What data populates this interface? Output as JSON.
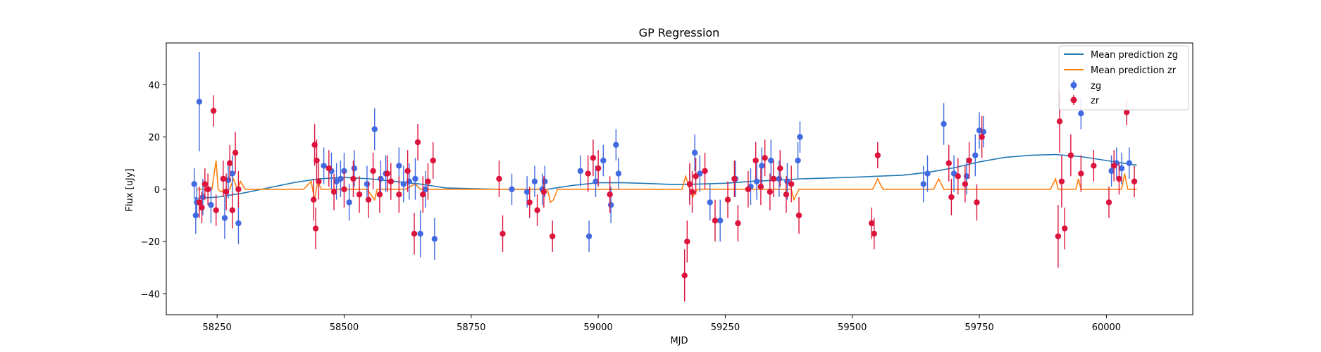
{
  "chart_data": {
    "type": "scatter",
    "title": "GP Regression",
    "xlabel": "MJD",
    "ylabel": "Flux [uJy]",
    "xlim": [
      58150,
      60170
    ],
    "ylim": [
      -48,
      56
    ],
    "xticks": [
      58250,
      58500,
      58750,
      59000,
      59250,
      59500,
      59750,
      60000
    ],
    "yticks": [
      -40,
      -20,
      0,
      20,
      40
    ],
    "grid": false,
    "legend_position": "top-right",
    "colors": {
      "zg_line": "#1f77b4",
      "zr_line": "#ff7f0e",
      "zg_points": "#4169e1",
      "zr_points": "#dc143c"
    },
    "legend": [
      "Mean prediction zg",
      "Mean prediction zr",
      "zg",
      "zr"
    ],
    "series": [
      {
        "name": "Mean prediction zg",
        "kind": "line",
        "x": [
          58210,
          58250,
          58300,
          58350,
          58400,
          58450,
          58500,
          58550,
          58600,
          58650,
          58700,
          58800,
          58900,
          58950,
          59000,
          59050,
          59100,
          59150,
          59200,
          59250,
          59300,
          59350,
          59400,
          59450,
          59500,
          59550,
          59600,
          59650,
          59700,
          59750,
          59800,
          59850,
          59900,
          59950,
          60000,
          60060
        ],
        "y": [
          -3.5,
          -3,
          -1.5,
          0.5,
          2.5,
          4,
          4.5,
          4,
          3,
          2,
          0.5,
          0,
          0,
          1.5,
          2.5,
          2.5,
          2.2,
          1.8,
          2,
          2.3,
          3,
          3.5,
          4,
          4.3,
          4.6,
          5,
          5.4,
          6.5,
          8.2,
          10.5,
          12.2,
          13,
          13.3,
          12.5,
          11,
          9.2
        ]
      },
      {
        "name": "Mean prediction zr",
        "kind": "line",
        "x": [
          58210,
          58230,
          58240,
          58248,
          58252,
          58258,
          58265,
          58275,
          58282,
          58290,
          58296,
          58305,
          58420,
          58435,
          58442,
          58448,
          58455,
          58470,
          58500,
          58520,
          58545,
          58560,
          58565,
          58575,
          58600,
          58620,
          58640,
          58650,
          58660,
          58680,
          58800,
          58830,
          58900,
          58906,
          58912,
          58920,
          58970,
          58990,
          59010,
          59040,
          59150,
          59165,
          59172,
          59180,
          59186,
          59195,
          59240,
          59300,
          59380,
          59385,
          59395,
          59530,
          59540,
          59550,
          59560,
          59660,
          59670,
          59680,
          59700,
          59740,
          59760,
          59890,
          59900,
          59905,
          59940,
          59945,
          59950,
          59990,
          60000,
          60030,
          60036,
          60042,
          60060
        ],
        "y": [
          0,
          0,
          0,
          11,
          0,
          -1,
          0,
          0,
          4,
          0,
          3,
          0,
          0,
          3,
          -4,
          3,
          0,
          0,
          0,
          0,
          0,
          -4,
          0,
          0,
          0,
          0,
          2,
          0,
          0,
          0,
          0,
          0,
          0,
          -5,
          -4,
          0,
          0,
          0,
          0,
          0,
          0,
          0,
          5,
          0,
          -3,
          0,
          0,
          0,
          0,
          -4,
          0,
          0,
          0,
          4,
          0,
          0,
          4,
          0,
          0,
          0,
          0,
          0,
          4,
          0,
          0,
          4,
          0,
          0,
          0,
          0,
          6,
          0,
          0
        ]
      },
      {
        "name": "zg",
        "kind": "errorbar",
        "x": [
          58205,
          58208,
          58210,
          58215,
          58222,
          58238,
          58265,
          58272,
          58280,
          58292,
          58460,
          58475,
          58485,
          58493,
          58500,
          58510,
          58520,
          58545,
          58560,
          58572,
          58582,
          58592,
          58608,
          58617,
          58628,
          58640,
          58650,
          58660,
          58678,
          58830,
          58860,
          58875,
          58890,
          58895,
          58965,
          58982,
          58995,
          59010,
          59025,
          59035,
          59040,
          59180,
          59190,
          59200,
          59220,
          59240,
          59270,
          59300,
          59312,
          59322,
          59340,
          59356,
          59372,
          59393,
          59397,
          59640,
          59648,
          59680,
          59700,
          59725,
          59742,
          59750,
          59758,
          59950,
          60010,
          60020,
          60030,
          60045
        ],
        "y": [
          2,
          -10,
          -5,
          33.5,
          -3,
          -6,
          -11,
          3.5,
          6,
          -13,
          9,
          7,
          3,
          4,
          7,
          -5,
          8,
          2,
          23,
          4,
          6,
          3,
          9,
          2,
          3,
          4,
          -17,
          0,
          -19,
          0,
          -1,
          3,
          0,
          3,
          7,
          -18,
          3,
          11,
          -6,
          17,
          6,
          2,
          14,
          6,
          -5,
          -12,
          4,
          1,
          3,
          9,
          11,
          4,
          3,
          11,
          20,
          2,
          6,
          25,
          6,
          5,
          13,
          22.5,
          22,
          29,
          7,
          10,
          8,
          10
        ],
        "yerr": [
          6,
          7,
          6,
          19,
          7,
          7,
          8,
          7,
          7,
          8,
          7,
          7,
          7,
          7,
          7,
          7,
          7,
          7,
          8,
          7,
          7,
          7,
          7,
          7,
          7,
          8,
          9,
          7,
          8,
          6,
          6,
          6,
          6,
          6,
          6,
          6,
          6,
          6,
          7,
          6,
          6,
          7,
          7,
          7,
          7,
          8,
          7,
          7,
          7,
          7,
          8,
          7,
          7,
          7,
          6,
          7,
          7,
          8,
          7,
          7,
          8,
          7,
          6,
          6,
          6,
          6,
          6,
          6
        ]
      },
      {
        "name": "zr",
        "kind": "errorbar",
        "x": [
          58215,
          58220,
          58226,
          58232,
          58243,
          58248,
          58262,
          58268,
          58275,
          58280,
          58286,
          58292,
          58440,
          58442,
          58444,
          58446,
          58450,
          58470,
          58480,
          58500,
          58518,
          58530,
          58548,
          58557,
          58570,
          58585,
          58592,
          58608,
          58625,
          58638,
          58645,
          58655,
          58665,
          58675,
          58805,
          58812,
          58865,
          58880,
          58893,
          58910,
          58980,
          58990,
          59000,
          59023,
          59170,
          59175,
          59180,
          59185,
          59192,
          59210,
          59230,
          59255,
          59268,
          59275,
          59295,
          59310,
          59320,
          59328,
          59338,
          59345,
          59358,
          59370,
          59380,
          59395,
          59538,
          59543,
          59550,
          59690,
          59695,
          59708,
          59722,
          59730,
          59745,
          59755,
          59905,
          59908,
          59912,
          59918,
          59930,
          59950,
          59975,
          60005,
          60015,
          60025,
          60040,
          60055
        ],
        "y": [
          -5,
          -7,
          2,
          0,
          30,
          -8,
          4,
          -1,
          10,
          -8,
          14,
          0,
          -4,
          17,
          -15,
          11,
          3,
          8,
          -1,
          0,
          4,
          -2,
          -4,
          7,
          -2,
          6,
          3,
          -2,
          7,
          -17,
          18,
          -2,
          3,
          11,
          4,
          -17,
          -5,
          -8,
          -1,
          -18,
          6,
          12,
          8,
          -2,
          -33,
          -20,
          2,
          -1,
          5,
          7,
          -12,
          -4,
          4,
          -13,
          0,
          11,
          1,
          12,
          -1,
          4,
          8,
          -2,
          2,
          -10,
          -13,
          -17,
          13,
          10,
          -3,
          5,
          2,
          11,
          -5,
          20,
          -18,
          26,
          3,
          -15,
          13,
          6,
          9,
          -5,
          9,
          4,
          29.5,
          3
        ],
        "yerr": [
          6,
          6,
          6,
          6,
          6,
          6,
          7,
          7,
          7,
          7,
          8,
          7,
          8,
          8,
          8,
          8,
          7,
          7,
          7,
          7,
          7,
          7,
          7,
          7,
          7,
          7,
          7,
          7,
          8,
          8,
          7,
          7,
          7,
          7,
          7,
          7,
          6,
          6,
          6,
          6,
          7,
          7,
          7,
          7,
          10,
          8,
          8,
          8,
          7,
          7,
          8,
          7,
          7,
          7,
          7,
          7,
          7,
          7,
          7,
          7,
          7,
          7,
          7,
          7,
          6,
          6,
          5,
          7,
          7,
          7,
          7,
          7,
          7,
          8,
          12,
          12,
          10,
          8,
          8,
          7,
          6,
          6,
          6,
          6,
          5,
          6
        ]
      }
    ]
  }
}
